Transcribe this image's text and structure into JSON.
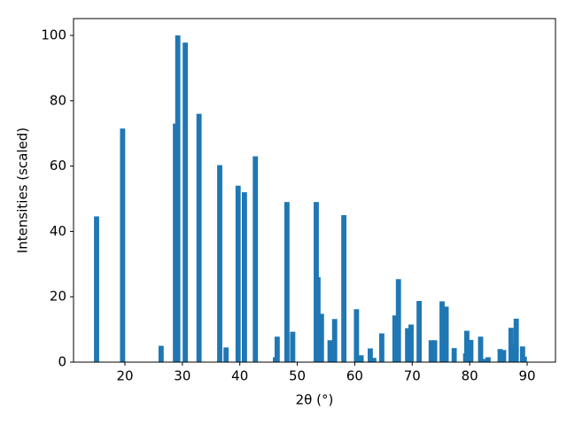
{
  "chart_data": {
    "type": "bar",
    "x_label": "2θ (°)",
    "y_label": "Intensities (scaled)",
    "color": "#1f77b4",
    "x": [
      15.07,
      19.6,
      26.3,
      28.8,
      29.2,
      30.5,
      32.9,
      36.5,
      37.6,
      39.7,
      40.8,
      42.7,
      46.2,
      46.5,
      48.2,
      49.2,
      53.3,
      53.6,
      54.2,
      55.7,
      56.5,
      58.1,
      60.3,
      61.1,
      62.7,
      63.3,
      64.7,
      67.0,
      67.6,
      69.2,
      69.8,
      71.2,
      73.3,
      73.9,
      75.2,
      75.9,
      77.3,
      79.3,
      79.5,
      80.2,
      81.9,
      82.4,
      83.2,
      85.3,
      85.9,
      87.2,
      87.6,
      88.1,
      89.2,
      89.5
    ],
    "values": [
      44.6,
      71.5,
      5,
      73,
      100,
      97.8,
      76,
      60.3,
      4.5,
      54,
      52,
      63,
      1.5,
      7.8,
      49,
      9.3,
      49,
      26,
      14.8,
      6.7,
      13.2,
      45,
      16.2,
      2.1,
      4.2,
      1.3,
      8.8,
      14.3,
      25.4,
      10.4,
      11.5,
      18.7,
      6.7,
      6.7,
      18.6,
      17,
      4.3,
      2.7,
      9.6,
      6.8,
      7.8,
      1,
      1.5,
      4,
      3.7,
      10.5,
      5.8,
      13.3,
      4.8,
      1.7
    ],
    "xlim": [
      11.06,
      94.93
    ],
    "ylim": [
      0,
      105.15
    ],
    "xticks": [
      20,
      30,
      40,
      50,
      60,
      70,
      80,
      90
    ],
    "yticks": [
      0,
      20,
      40,
      60,
      80,
      100
    ]
  }
}
